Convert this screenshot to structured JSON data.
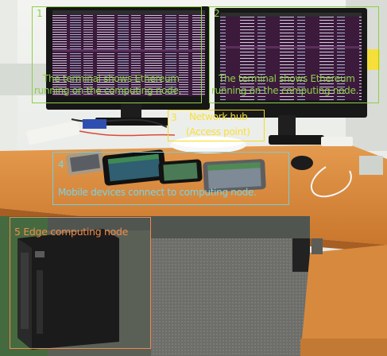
{
  "annotations": {
    "monitor_left": {
      "number": "1",
      "line1": "The terminal shows Ethereum",
      "line2": "running on the computing node."
    },
    "monitor_right": {
      "number": "2",
      "line1": "The terminal shows Ethereum",
      "line2": "running on the computing node."
    },
    "network_hub": {
      "number": "3",
      "line1": "Network hub",
      "line2": "(Access point)"
    },
    "mobile_devices": {
      "number": "4",
      "line1": "Mobile devices connect to computing node."
    },
    "edge_node": {
      "line1": "5 Edge computing node"
    }
  },
  "colors": {
    "green": "#8ccf4a",
    "yellow": "#f3dd1f",
    "cyan": "#73cde0",
    "orange": "#f08a4c",
    "desk": "#d98a3c",
    "terminal": "#3a1f3a"
  }
}
